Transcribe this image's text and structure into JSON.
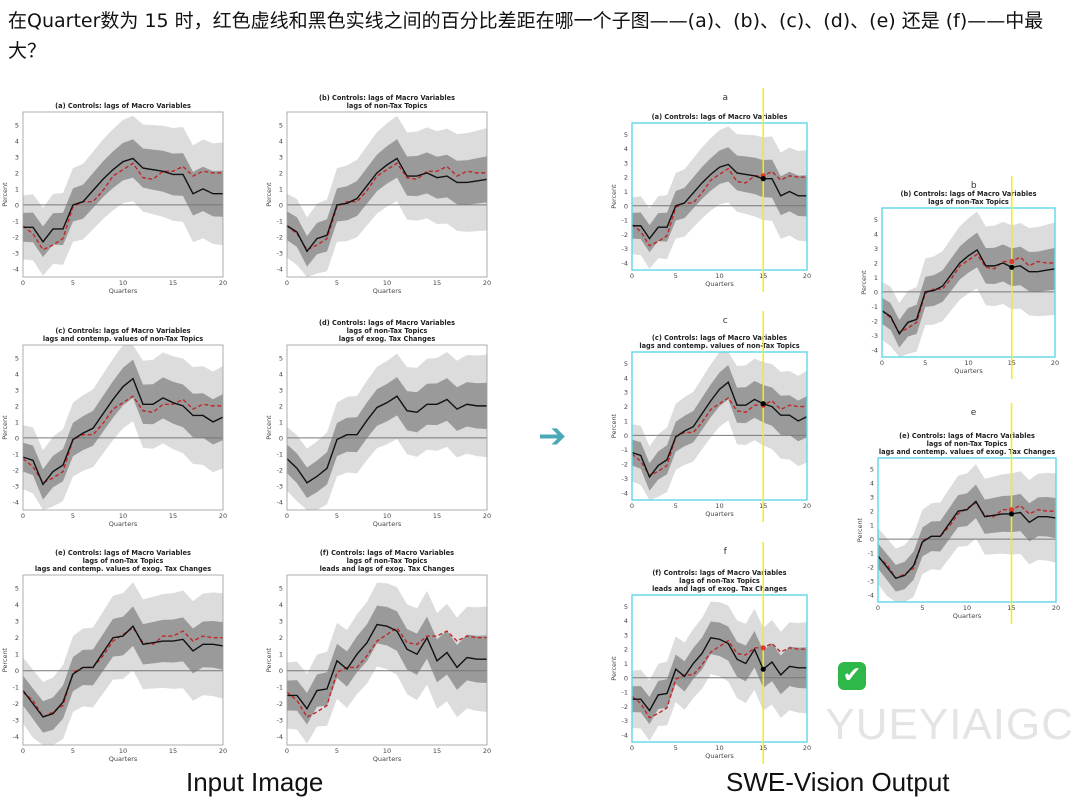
{
  "question": "在Quarter数为 15 时，红色虚线和黑色实线之间的百分比差距在哪一个子图——(a)、(b)、(c)、(d)、(e) 还是 (f)——中最大？",
  "captions": {
    "input": "Input Image",
    "output": "SWE-Vision Output"
  },
  "watermark": "YUEYIAIGC",
  "icons": {
    "arrow": "right-arrow-icon",
    "check": "check-mark-icon"
  },
  "colors": {
    "black_line": "#111111",
    "red_dashed": "#c0282a",
    "inner_band": "#9a9a9a",
    "outer_band": "#dcdcdc",
    "highlight_line": "#f5f000",
    "panel_border": "#5fd6e6",
    "check": "#2fb84a"
  },
  "arrow_glyph": "➔",
  "check_glyph": "✔",
  "chart_data": [
    {
      "id": "a",
      "type": "line",
      "title": [
        "(a) Controls: lags of Macro Variables"
      ],
      "xlabel": "Quarters",
      "ylabel": "Percent",
      "xlim": [
        0,
        20
      ],
      "ylim": [
        -4.5,
        5.8
      ],
      "xticks": [
        0,
        5,
        10,
        15,
        20
      ],
      "yticks": [
        -4,
        -3,
        -2,
        -1,
        0,
        1,
        2,
        3,
        4,
        5
      ],
      "series": [
        {
          "style": "black-solid",
          "values": [
            -1.4,
            -1.4,
            -2.3,
            -1.5,
            -1.5,
            0.0,
            0.2,
            0.9,
            1.6,
            2.2,
            2.7,
            2.9,
            2.3,
            2.2,
            2.1,
            1.9,
            1.9,
            0.7,
            1.0,
            0.7,
            0.7
          ]
        },
        {
          "style": "red-dashed",
          "values": [
            -1.3,
            -1.8,
            -2.8,
            -2.5,
            -2.1,
            -0.1,
            0.2,
            0.2,
            0.9,
            1.8,
            2.2,
            2.6,
            1.7,
            1.6,
            2.1,
            2.1,
            2.4,
            1.8,
            2.1,
            2.0,
            2.0
          ]
        }
      ]
    },
    {
      "id": "b",
      "type": "line",
      "title": [
        "(b) Controls: lags of Macro Variables",
        "lags of non-Tax Topics"
      ],
      "xlabel": "Quarters",
      "ylabel": "Percent",
      "xlim": [
        0,
        20
      ],
      "ylim": [
        -4.5,
        5.8
      ],
      "xticks": [
        0,
        5,
        10,
        15,
        20
      ],
      "yticks": [
        -4,
        -3,
        -2,
        -1,
        0,
        1,
        2,
        3,
        4,
        5
      ],
      "series": [
        {
          "style": "black-solid",
          "values": [
            -1.3,
            -1.7,
            -2.9,
            -2.1,
            -1.9,
            0.0,
            0.1,
            0.4,
            1.2,
            2.0,
            2.5,
            2.9,
            1.8,
            1.8,
            2.0,
            1.7,
            1.8,
            1.4,
            1.4,
            1.5,
            1.6
          ]
        },
        {
          "style": "red-dashed",
          "values": [
            -1.3,
            -1.8,
            -2.8,
            -2.5,
            -2.1,
            -0.1,
            0.2,
            0.2,
            0.9,
            1.8,
            2.2,
            2.6,
            1.7,
            1.6,
            2.1,
            2.1,
            2.4,
            1.8,
            2.1,
            2.0,
            2.0
          ]
        }
      ]
    },
    {
      "id": "c",
      "type": "line",
      "title": [
        "(c) Controls: lags of Macro Variables",
        "lags and contemp. values of non-Tax Topics"
      ],
      "xlabel": "Quarters",
      "ylabel": "Percent",
      "xlim": [
        0,
        20
      ],
      "ylim": [
        -4.5,
        5.8
      ],
      "xticks": [
        0,
        5,
        10,
        15,
        20
      ],
      "yticks": [
        -4,
        -3,
        -2,
        -1,
        0,
        1,
        2,
        3,
        4,
        5
      ],
      "series": [
        {
          "style": "black-solid",
          "values": [
            -1.2,
            -1.4,
            -2.9,
            -2.1,
            -1.7,
            -0.1,
            0.3,
            0.6,
            1.5,
            2.4,
            3.2,
            3.7,
            2.1,
            2.1,
            2.5,
            2.2,
            2.0,
            1.4,
            1.4,
            1.0,
            1.3
          ]
        },
        {
          "style": "red-dashed",
          "values": [
            -1.3,
            -1.8,
            -2.8,
            -2.5,
            -2.1,
            -0.1,
            0.2,
            0.2,
            0.9,
            1.8,
            2.2,
            2.6,
            1.7,
            1.6,
            2.1,
            2.1,
            2.4,
            1.8,
            2.1,
            2.0,
            2.0
          ]
        }
      ]
    },
    {
      "id": "d",
      "type": "line",
      "title": [
        "(d) Controls: lags of Macro Variables",
        "lags of non-Tax Topics",
        "lags of exog. Tax Changes"
      ],
      "xlabel": "Quarters",
      "ylabel": "Percent",
      "xlim": [
        0,
        20
      ],
      "ylim": [
        -4.5,
        5.8
      ],
      "xticks": [
        0,
        5,
        10,
        15,
        20
      ],
      "yticks": [
        -4,
        -3,
        -2,
        -1,
        0,
        1,
        2,
        3,
        4,
        5
      ],
      "series": [
        {
          "style": "black-solid",
          "values": [
            -1.3,
            -1.9,
            -2.8,
            -2.4,
            -1.9,
            -0.1,
            0.2,
            0.2,
            1.1,
            1.9,
            2.2,
            2.6,
            1.7,
            1.6,
            2.1,
            2.1,
            2.4,
            1.8,
            2.1,
            2.0,
            2.0
          ]
        }
      ]
    },
    {
      "id": "e",
      "type": "line",
      "title": [
        "(e) Controls: lags of Macro Variables",
        "lags of non-Tax Topics",
        "lags and contemp. values of exog. Tax Changes"
      ],
      "xlabel": "Quarters",
      "ylabel": "Percent",
      "xlim": [
        0,
        20
      ],
      "ylim": [
        -4.5,
        5.8
      ],
      "xticks": [
        0,
        5,
        10,
        15,
        20
      ],
      "yticks": [
        -4,
        -3,
        -2,
        -1,
        0,
        1,
        2,
        3,
        4,
        5
      ],
      "series": [
        {
          "style": "black-solid",
          "values": [
            -1.2,
            -2.0,
            -2.8,
            -2.6,
            -1.9,
            -0.2,
            0.2,
            0.2,
            1.1,
            2.0,
            2.1,
            2.7,
            1.6,
            1.7,
            1.8,
            1.8,
            1.9,
            1.2,
            1.6,
            1.6,
            1.5
          ]
        },
        {
          "style": "red-dashed",
          "values": [
            -1.3,
            -1.8,
            -2.8,
            -2.5,
            -2.1,
            -0.1,
            0.2,
            0.2,
            0.9,
            1.8,
            2.2,
            2.6,
            1.7,
            1.6,
            2.1,
            2.1,
            2.4,
            1.8,
            2.1,
            2.0,
            2.0
          ]
        }
      ]
    },
    {
      "id": "f",
      "type": "line",
      "title": [
        "(f) Controls: lags of Macro Variables",
        "lags of non-Tax Topics",
        "leads and lags of exog. Tax Changes"
      ],
      "xlabel": "Quarters",
      "ylabel": "Percent",
      "xlim": [
        0,
        20
      ],
      "ylim": [
        -4.5,
        5.8
      ],
      "xticks": [
        0,
        5,
        10,
        15,
        20
      ],
      "yticks": [
        -4,
        -3,
        -2,
        -1,
        0,
        1,
        2,
        3,
        4,
        5
      ],
      "series": [
        {
          "style": "black-solid",
          "values": [
            -1.5,
            -1.5,
            -2.3,
            -1.2,
            -1.1,
            0.6,
            0.1,
            1.0,
            1.7,
            2.8,
            2.7,
            2.4,
            1.3,
            1.0,
            2.0,
            0.6,
            1.1,
            0.2,
            0.8,
            0.7,
            0.7
          ]
        },
        {
          "style": "red-dashed",
          "values": [
            -1.3,
            -1.8,
            -2.8,
            -2.5,
            -2.1,
            -0.1,
            0.2,
            0.2,
            0.9,
            1.8,
            2.2,
            2.6,
            1.7,
            1.6,
            2.1,
            2.1,
            2.4,
            1.8,
            2.1,
            2.0,
            2.0
          ]
        }
      ]
    }
  ],
  "output_panels": [
    {
      "chart": "a",
      "label": "a",
      "highlight_x": 15
    },
    {
      "chart": "b",
      "label": "b",
      "highlight_x": 15
    },
    {
      "chart": "c",
      "label": "c",
      "highlight_x": 15
    },
    {
      "chart": "e",
      "label": "e",
      "highlight_x": 15
    },
    {
      "chart": "f",
      "label": "f",
      "highlight_x": 15
    }
  ]
}
